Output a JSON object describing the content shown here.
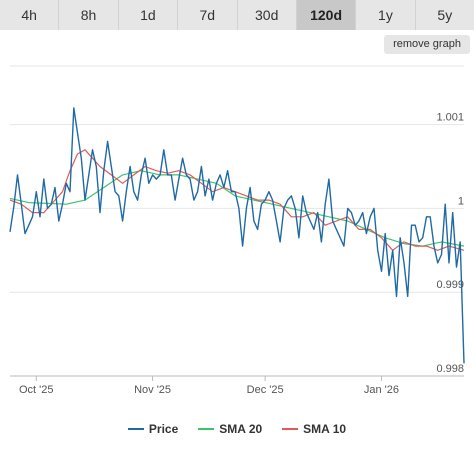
{
  "tabs": [
    {
      "label": "4h",
      "active": false
    },
    {
      "label": "8h",
      "active": false
    },
    {
      "label": "1d",
      "active": false
    },
    {
      "label": "7d",
      "active": false
    },
    {
      "label": "30d",
      "active": false
    },
    {
      "label": "120d",
      "active": true
    },
    {
      "label": "1y",
      "active": false
    },
    {
      "label": "5y",
      "active": false
    }
  ],
  "remove_graph_label": "remove graph",
  "chart_data": {
    "type": "line",
    "x_tick_labels": [
      "Oct '25",
      "Nov '25",
      "Dec '25",
      "Jan '26"
    ],
    "y_tick_labels": [
      "0.998",
      "0.999",
      "1",
      "1.001"
    ],
    "ylim": [
      0.998,
      1.0017
    ],
    "grid": true,
    "legend_position": "bottom",
    "x_day_range": [
      0,
      121
    ],
    "series": [
      {
        "name": "Price",
        "color": "#1f6aa5",
        "x": [
          0,
          1,
          2,
          3,
          4,
          5,
          6,
          7,
          8,
          9,
          10,
          11,
          12,
          13,
          14,
          15,
          16,
          17,
          18,
          19,
          20,
          21,
          22,
          23,
          24,
          25,
          26,
          27,
          28,
          29,
          30,
          31,
          32,
          33,
          34,
          35,
          36,
          37,
          38,
          39,
          40,
          41,
          42,
          43,
          44,
          45,
          46,
          47,
          48,
          49,
          50,
          51,
          52,
          53,
          54,
          55,
          56,
          57,
          58,
          59,
          60,
          61,
          62,
          63,
          64,
          65,
          66,
          67,
          68,
          69,
          70,
          71,
          72,
          73,
          74,
          75,
          76,
          77,
          78,
          79,
          80,
          81,
          82,
          83,
          84,
          85,
          86,
          87,
          88,
          89,
          90,
          91,
          92,
          93,
          94,
          95,
          96,
          97,
          98,
          99,
          100,
          101,
          102,
          103,
          104,
          105,
          106,
          107,
          108,
          109,
          110,
          111,
          112,
          113,
          114,
          115,
          116,
          117,
          118,
          119,
          120,
          121
        ],
        "values": [
          0.99972,
          1.00002,
          1.0004,
          1.00005,
          0.9997,
          0.9998,
          0.9999,
          1.0002,
          0.9999,
          1.00035,
          1.0,
          1.00005,
          1.00025,
          0.99985,
          1.00005,
          1.0003,
          1.0002,
          1.0012,
          1.0009,
          1.0006,
          1.0001,
          1.0004,
          1.0007,
          1.0005,
          0.99995,
          1.00045,
          1.0008,
          1.0005,
          1.0002,
          1.00015,
          0.99985,
          1.0002,
          1.0005,
          1.0002,
          1.0001,
          1.0004,
          1.0006,
          1.0003,
          1.0004,
          1.00035,
          1.0004,
          1.0007,
          1.0004,
          1.0004,
          1.0001,
          1.00035,
          1.0006,
          1.0004,
          1.00035,
          1.0001,
          1.0002,
          1.0005,
          1.00015,
          1.00035,
          1.0001,
          1.0003,
          1.0004,
          1.00025,
          1.00045,
          1.0002,
          1.0002,
          1.0,
          0.99955,
          1.0,
          1.00025,
          0.99985,
          0.99975,
          1.00005,
          1.0001,
          1.0002,
          1.0001,
          0.99985,
          0.9996,
          1.0,
          1.0001,
          1.00015,
          1.0,
          0.99965,
          1.00015,
          0.99995,
          0.99985,
          0.99975,
          0.99995,
          0.9996,
          1.00005,
          1.00035,
          0.99985,
          0.99975,
          0.99965,
          0.99955,
          1.0,
          0.99995,
          0.9998,
          0.99985,
          0.99995,
          0.9997,
          0.9999,
          1.0,
          0.9995,
          0.99925,
          0.9997,
          0.9992,
          0.9995,
          0.99895,
          0.99965,
          0.99935,
          0.99895,
          0.9998,
          0.9998,
          0.9996,
          0.99965,
          0.9999,
          0.9999,
          0.99955,
          0.99935,
          0.99945,
          1.00005,
          0.99935,
          0.99995,
          0.9993,
          0.9996,
          0.99815
        ]
      },
      {
        "name": "SMA 20",
        "color": "#3cc46a",
        "x": [
          0,
          5,
          10,
          15,
          20,
          25,
          30,
          35,
          40,
          45,
          50,
          55,
          60,
          65,
          70,
          75,
          80,
          85,
          90,
          95,
          100,
          105,
          110,
          115,
          121
        ],
        "values": [
          1.00012,
          1.00007,
          1.00006,
          1.00005,
          1.0001,
          1.00025,
          1.0004,
          1.00045,
          1.0004,
          1.0004,
          1.00035,
          1.0003,
          1.00015,
          1.0001,
          1.00005,
          1.0,
          0.99995,
          0.9999,
          0.99985,
          0.99975,
          0.99965,
          0.99958,
          0.99955,
          0.9996,
          0.99955
        ]
      },
      {
        "name": "SMA 10",
        "color": "#e05a5a",
        "x": [
          0,
          3,
          6,
          9,
          12,
          14,
          16,
          18,
          20,
          22,
          24,
          27,
          30,
          33,
          36,
          39,
          42,
          45,
          48,
          51,
          54,
          57,
          60,
          63,
          66,
          69,
          72,
          75,
          78,
          81,
          84,
          87,
          90,
          93,
          96,
          99,
          102,
          105,
          108,
          111,
          114,
          117,
          121
        ],
        "values": [
          1.0001,
          1.00005,
          0.99995,
          0.99995,
          1.0001,
          1.0002,
          1.00045,
          1.00065,
          1.0007,
          1.0006,
          1.0005,
          1.0004,
          1.0003,
          1.0004,
          1.0005,
          1.00045,
          1.00042,
          1.00045,
          1.0004,
          1.0003,
          1.0002,
          1.00025,
          1.0002,
          1.00015,
          1.0001,
          1.0001,
          1.00005,
          0.9999,
          0.9999,
          0.99995,
          0.9998,
          0.99985,
          0.9999,
          0.99975,
          0.99975,
          0.99965,
          0.9995,
          0.9996,
          0.99955,
          0.99955,
          0.9995,
          0.99955,
          0.9995
        ]
      }
    ]
  },
  "legend": {
    "price_label": "Price",
    "sma20_label": "SMA 20",
    "sma10_label": "SMA 10"
  }
}
